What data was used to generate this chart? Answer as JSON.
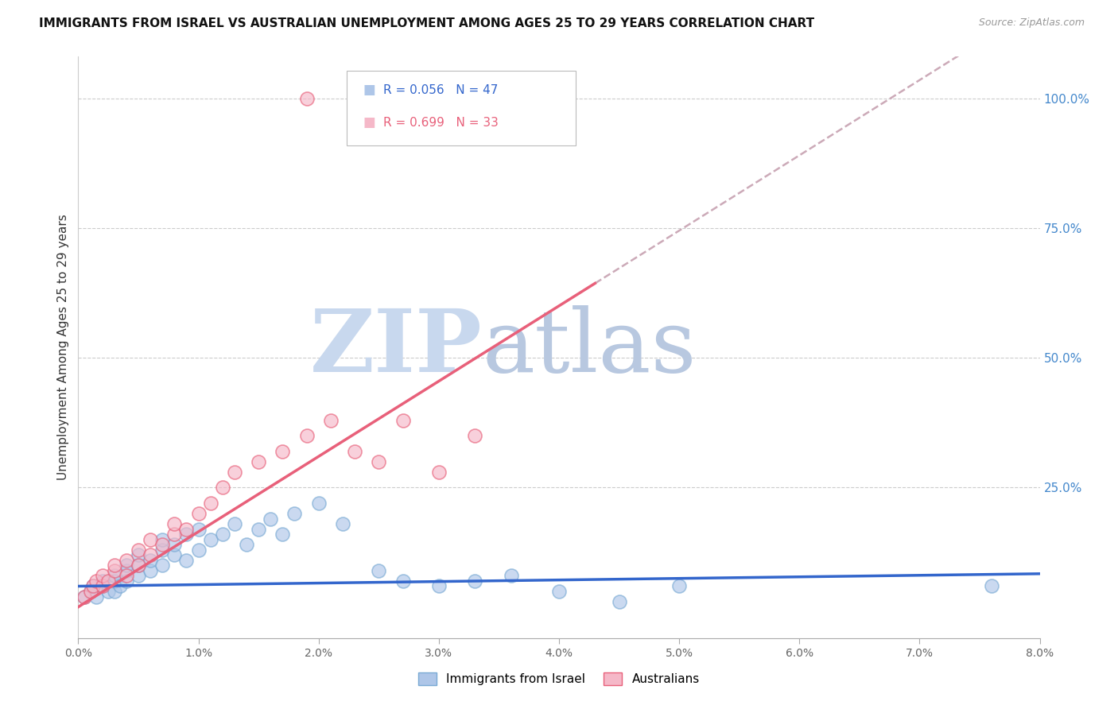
{
  "title": "IMMIGRANTS FROM ISRAEL VS AUSTRALIAN UNEMPLOYMENT AMONG AGES 25 TO 29 YEARS CORRELATION CHART",
  "source": "Source: ZipAtlas.com",
  "ylabel": "Unemployment Among Ages 25 to 29 years",
  "ytick_labels": [
    "100.0%",
    "75.0%",
    "50.0%",
    "25.0%"
  ],
  "ytick_values": [
    1.0,
    0.75,
    0.5,
    0.25
  ],
  "israel_line_color": "#3366cc",
  "australian_line_color": "#e8607a",
  "australian_dashed_color": "#ccaab8",
  "scatter_israel_facecolor": "#aec6e8",
  "scatter_israel_edgecolor": "#7aaad4",
  "scatter_australian_facecolor": "#f5b8c8",
  "scatter_australian_edgecolor": "#e8607a",
  "background_color": "#ffffff",
  "watermark_zip_color": "#c8d8ee",
  "watermark_atlas_color": "#b8c8e0",
  "legend_r1": "R = 0.056",
  "legend_n1": "N = 47",
  "legend_r2": "R = 0.699",
  "legend_n2": "N = 33",
  "legend_label1": "Immigrants from Israel",
  "legend_label2": "Australians",
  "x_min": 0.0,
  "x_max": 0.08,
  "y_min": -0.04,
  "y_max": 1.08,
  "israel_scatter_x": [
    0.0005,
    0.001,
    0.0012,
    0.0015,
    0.002,
    0.002,
    0.0025,
    0.003,
    0.003,
    0.003,
    0.0035,
    0.004,
    0.004,
    0.004,
    0.005,
    0.005,
    0.005,
    0.006,
    0.006,
    0.007,
    0.007,
    0.007,
    0.008,
    0.008,
    0.009,
    0.009,
    0.01,
    0.01,
    0.011,
    0.012,
    0.013,
    0.014,
    0.015,
    0.016,
    0.017,
    0.018,
    0.02,
    0.022,
    0.025,
    0.027,
    0.03,
    0.033,
    0.036,
    0.04,
    0.045,
    0.05,
    0.076
  ],
  "israel_scatter_y": [
    0.04,
    0.05,
    0.06,
    0.04,
    0.06,
    0.07,
    0.05,
    0.05,
    0.07,
    0.08,
    0.06,
    0.07,
    0.09,
    0.1,
    0.08,
    0.1,
    0.12,
    0.09,
    0.11,
    0.1,
    0.13,
    0.15,
    0.12,
    0.14,
    0.11,
    0.16,
    0.13,
    0.17,
    0.15,
    0.16,
    0.18,
    0.14,
    0.17,
    0.19,
    0.16,
    0.2,
    0.22,
    0.18,
    0.09,
    0.07,
    0.06,
    0.07,
    0.08,
    0.05,
    0.03,
    0.06,
    0.06
  ],
  "australian_scatter_x": [
    0.0005,
    0.001,
    0.0012,
    0.0015,
    0.002,
    0.002,
    0.0025,
    0.003,
    0.003,
    0.004,
    0.004,
    0.005,
    0.005,
    0.006,
    0.006,
    0.007,
    0.008,
    0.008,
    0.009,
    0.01,
    0.011,
    0.012,
    0.013,
    0.015,
    0.017,
    0.019,
    0.021,
    0.023,
    0.025,
    0.027,
    0.03,
    0.033,
    0.019
  ],
  "australian_scatter_y": [
    0.04,
    0.05,
    0.06,
    0.07,
    0.06,
    0.08,
    0.07,
    0.09,
    0.1,
    0.08,
    0.11,
    0.1,
    0.13,
    0.12,
    0.15,
    0.14,
    0.16,
    0.18,
    0.17,
    0.2,
    0.22,
    0.25,
    0.28,
    0.3,
    0.32,
    0.35,
    0.38,
    0.32,
    0.3,
    0.38,
    0.28,
    0.35,
    1.0
  ],
  "aus_line_x_start": 0.0,
  "aus_line_x_solid_end": 0.043,
  "aus_line_slope": 14.5,
  "aus_line_intercept": 0.02,
  "israel_line_slope": 0.3,
  "israel_line_intercept": 0.06
}
